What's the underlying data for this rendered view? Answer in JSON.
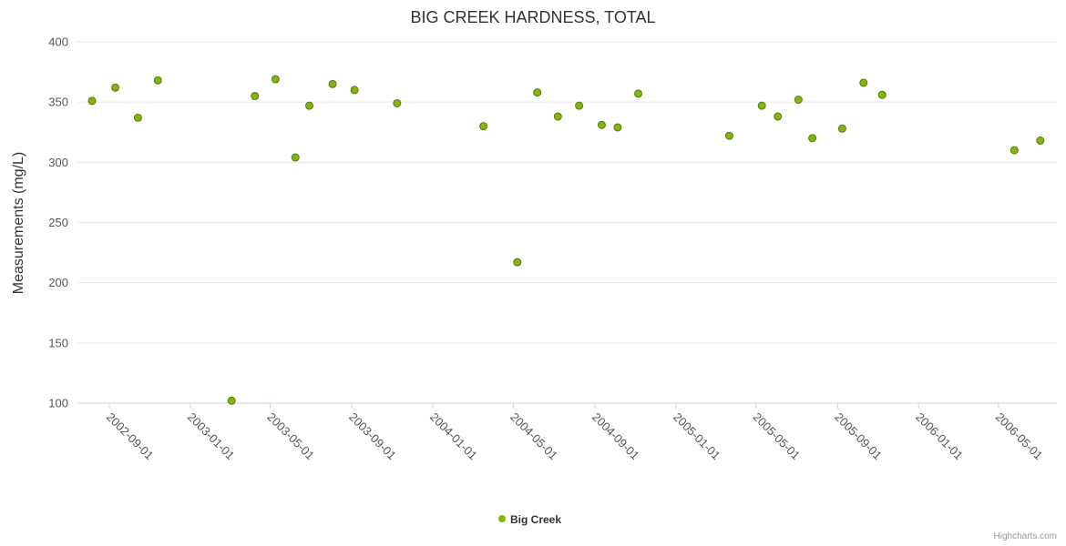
{
  "title": "BIG CREEK HARDNESS, TOTAL",
  "y_axis": {
    "label": "Measurements (mg/L)"
  },
  "legend": {
    "label": "Big Creek"
  },
  "credits": "Highcharts.com",
  "colors": {
    "marker": "#84b50d",
    "marker_stroke": "#567714",
    "grid": "#e6e6e6",
    "axis_line": "#ccd6eb",
    "title": "#333333",
    "label": "#555555",
    "legend_text": "#333333",
    "credits": "#999999"
  },
  "chart_data": {
    "type": "scatter",
    "title": "BIG CREEK HARDNESS, TOTAL",
    "xlabel": "",
    "ylabel": "Measurements (mg/L)",
    "ylim": [
      100,
      400
    ],
    "y_tick_interval": 50,
    "xlim": [
      "2002-07-15",
      "2006-07-28"
    ],
    "x_tick_labels": [
      "2002-09-01",
      "2003-01-01",
      "2003-05-01",
      "2003-09-01",
      "2004-01-01",
      "2004-05-01",
      "2004-09-01",
      "2005-01-01",
      "2005-05-01",
      "2005-09-01",
      "2006-01-01",
      "2006-05-01"
    ],
    "grid": "horizontal",
    "legend_position": "bottom-center",
    "series": [
      {
        "name": "Big Creek",
        "marker_color": "#84b50d",
        "points": [
          {
            "date": "2002-08-06",
            "value": 351
          },
          {
            "date": "2002-09-10",
            "value": 362
          },
          {
            "date": "2002-10-14",
            "value": 337
          },
          {
            "date": "2002-11-13",
            "value": 368
          },
          {
            "date": "2003-03-04",
            "value": 102
          },
          {
            "date": "2003-04-08",
            "value": 355
          },
          {
            "date": "2003-05-09",
            "value": 369
          },
          {
            "date": "2003-06-08",
            "value": 304
          },
          {
            "date": "2003-06-29",
            "value": 347
          },
          {
            "date": "2003-08-03",
            "value": 365
          },
          {
            "date": "2003-09-05",
            "value": 360
          },
          {
            "date": "2003-11-08",
            "value": 349
          },
          {
            "date": "2004-03-17",
            "value": 330
          },
          {
            "date": "2004-05-07",
            "value": 217
          },
          {
            "date": "2004-06-06",
            "value": 358
          },
          {
            "date": "2004-07-07",
            "value": 338
          },
          {
            "date": "2004-08-08",
            "value": 347
          },
          {
            "date": "2004-09-11",
            "value": 331
          },
          {
            "date": "2004-10-05",
            "value": 329
          },
          {
            "date": "2004-11-05",
            "value": 357
          },
          {
            "date": "2005-03-22",
            "value": 322
          },
          {
            "date": "2005-05-10",
            "value": 347
          },
          {
            "date": "2005-06-03",
            "value": 338
          },
          {
            "date": "2005-07-04",
            "value": 352
          },
          {
            "date": "2005-07-25",
            "value": 320
          },
          {
            "date": "2005-09-08",
            "value": 328
          },
          {
            "date": "2005-10-10",
            "value": 366
          },
          {
            "date": "2005-11-07",
            "value": 356
          },
          {
            "date": "2006-05-25",
            "value": 310
          },
          {
            "date": "2006-07-03",
            "value": 318
          }
        ]
      }
    ]
  }
}
